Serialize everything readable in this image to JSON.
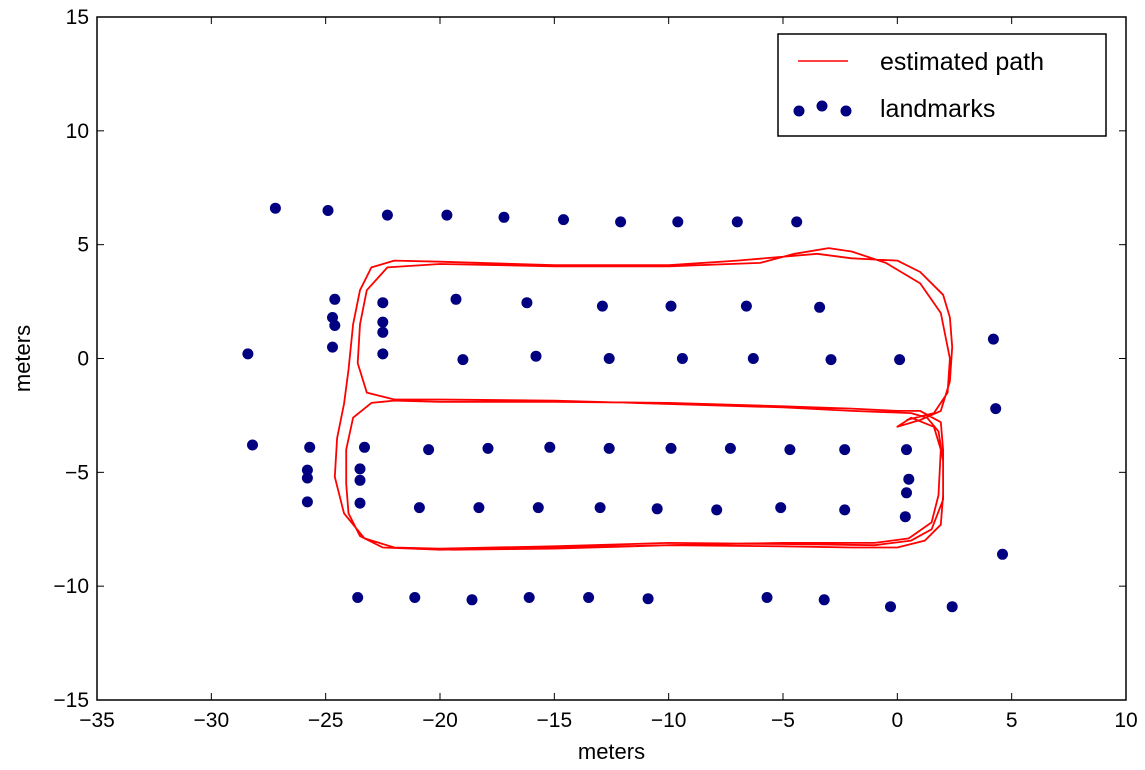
{
  "chart_data": {
    "type": "scatter",
    "xlabel": "meters",
    "ylabel": "meters",
    "xlim": [
      -35,
      10
    ],
    "ylim": [
      -15,
      15
    ],
    "xticks": [
      -35,
      -30,
      -25,
      -20,
      -15,
      -10,
      -5,
      0,
      5,
      10
    ],
    "yticks": [
      -15,
      -10,
      -5,
      0,
      5,
      10,
      15
    ],
    "xtick_labels": [
      "−35",
      "−30",
      "−25",
      "−20",
      "−15",
      "−10",
      "−5",
      "0",
      "5",
      "10"
    ],
    "ytick_labels": [
      "−15",
      "−10",
      "−5",
      "0",
      "5",
      "10",
      "15"
    ],
    "grid": false,
    "legend_position": "top-right",
    "series": [
      {
        "name": "estimated path",
        "type": "line",
        "color": "#ff0000",
        "points": [
          [
            -19.5,
            -8.4
          ],
          [
            -15,
            -8.35
          ],
          [
            -10,
            -8.2
          ],
          [
            -5,
            -8.25
          ],
          [
            -2,
            -8.3
          ],
          [
            0,
            -8.3
          ],
          [
            1.2,
            -8.0
          ],
          [
            1.9,
            -7.3
          ],
          [
            2.0,
            -6.0
          ],
          [
            2.0,
            -4.0
          ],
          [
            1.9,
            -2.8
          ],
          [
            1.0,
            -2.3
          ],
          [
            0,
            -2.3
          ],
          [
            -2,
            -2.2
          ],
          [
            -5,
            -2.1
          ],
          [
            -10,
            -1.95
          ],
          [
            -15,
            -1.9
          ],
          [
            -20,
            -1.9
          ],
          [
            -22,
            -1.85
          ],
          [
            -23,
            -1.95
          ],
          [
            -23.8,
            -2.6
          ],
          [
            -24.1,
            -4.0
          ],
          [
            -24.1,
            -5.5
          ],
          [
            -24.0,
            -6.8
          ],
          [
            -23.5,
            -7.8
          ],
          [
            -22.5,
            -8.3
          ],
          [
            -20,
            -8.4
          ],
          [
            -15,
            -8.3
          ],
          [
            -10,
            -8.2
          ],
          [
            -5,
            -8.1
          ],
          [
            -1,
            -8.1
          ],
          [
            0.5,
            -7.9
          ],
          [
            1.5,
            -7.2
          ],
          [
            1.8,
            -6.0
          ],
          [
            1.9,
            -4.0
          ],
          [
            1.6,
            -3.0
          ],
          [
            0.6,
            -2.6
          ],
          [
            0,
            -3.0
          ],
          [
            1.0,
            -2.7
          ],
          [
            1.9,
            -2.3
          ],
          [
            2.3,
            -1.0
          ],
          [
            2.4,
            0.5
          ],
          [
            2.3,
            1.8
          ],
          [
            2.0,
            2.8
          ],
          [
            1.0,
            3.8
          ],
          [
            0,
            4.3
          ],
          [
            -2.0,
            4.4
          ],
          [
            -3.5,
            4.6
          ],
          [
            -7,
            4.3
          ],
          [
            -10,
            4.1
          ],
          [
            -15,
            4.1
          ],
          [
            -20,
            4.25
          ],
          [
            -22,
            4.3
          ],
          [
            -23.0,
            4.0
          ],
          [
            -23.5,
            3.0
          ],
          [
            -23.8,
            1.5
          ],
          [
            -24.0,
            -0.5
          ],
          [
            -24.2,
            -2.0
          ],
          [
            -24.5,
            -3.5
          ],
          [
            -24.6,
            -5.2
          ],
          [
            -24.2,
            -6.8
          ],
          [
            -23.3,
            -7.9
          ],
          [
            -22,
            -8.3
          ],
          [
            -20,
            -8.35
          ],
          [
            -15,
            -8.25
          ],
          [
            -10,
            -8.1
          ],
          [
            -5,
            -8.15
          ],
          [
            -1.0,
            -8.2
          ],
          [
            0.6,
            -8.0
          ],
          [
            1.5,
            -7.5
          ],
          [
            2.0,
            -6.2
          ],
          [
            2.0,
            -4.5
          ],
          [
            1.8,
            -3.2
          ],
          [
            1.3,
            -2.6
          ],
          [
            0.6,
            -2.4
          ],
          [
            -2,
            -2.3
          ],
          [
            -5,
            -2.15
          ],
          [
            -10,
            -2.0
          ],
          [
            -15,
            -1.85
          ],
          [
            -20,
            -1.8
          ],
          [
            -22,
            -1.8
          ],
          [
            -23.2,
            -1.5
          ],
          [
            -23.6,
            -0.2
          ],
          [
            -23.5,
            1.5
          ],
          [
            -23.2,
            3.0
          ],
          [
            -22.3,
            4.0
          ],
          [
            -20,
            4.15
          ],
          [
            -15,
            4.05
          ],
          [
            -10,
            4.05
          ],
          [
            -6,
            4.2
          ],
          [
            -4.5,
            4.6
          ],
          [
            -3.0,
            4.85
          ],
          [
            -2.0,
            4.7
          ],
          [
            -0.5,
            4.2
          ],
          [
            1.0,
            3.3
          ],
          [
            1.9,
            2.0
          ],
          [
            2.3,
            0.0
          ],
          [
            2.2,
            -1.5
          ],
          [
            1.6,
            -2.4
          ],
          [
            0.4,
            -2.7
          ]
        ]
      },
      {
        "name": "landmarks",
        "type": "scatter",
        "color": "#000080",
        "points": [
          [
            -27.2,
            6.6
          ],
          [
            -24.9,
            6.5
          ],
          [
            -22.3,
            6.3
          ],
          [
            -19.7,
            6.3
          ],
          [
            -17.2,
            6.2
          ],
          [
            -14.6,
            6.1
          ],
          [
            -12.1,
            6.0
          ],
          [
            -9.6,
            6.0
          ],
          [
            -7.0,
            6.0
          ],
          [
            -4.4,
            6.0
          ],
          [
            -24.6,
            2.6
          ],
          [
            -22.5,
            2.45
          ],
          [
            -19.3,
            2.6
          ],
          [
            -16.2,
            2.45
          ],
          [
            -12.9,
            2.3
          ],
          [
            -9.9,
            2.3
          ],
          [
            -6.6,
            2.3
          ],
          [
            -3.4,
            2.25
          ],
          [
            -24.7,
            1.8
          ],
          [
            -24.6,
            1.45
          ],
          [
            -22.5,
            1.6
          ],
          [
            -22.5,
            1.15
          ],
          [
            -28.4,
            0.2
          ],
          [
            -24.7,
            0.5
          ],
          [
            -22.5,
            0.2
          ],
          [
            -19.0,
            -0.05
          ],
          [
            -15.8,
            0.1
          ],
          [
            -12.6,
            0.0
          ],
          [
            -9.4,
            0.0
          ],
          [
            -6.3,
            0.0
          ],
          [
            -2.9,
            -0.05
          ],
          [
            0.1,
            -0.05
          ],
          [
            4.2,
            0.85
          ],
          [
            4.3,
            -2.2
          ],
          [
            -28.2,
            -3.8
          ],
          [
            -25.7,
            -3.9
          ],
          [
            -23.3,
            -3.9
          ],
          [
            -20.5,
            -4.0
          ],
          [
            -17.9,
            -3.95
          ],
          [
            -15.2,
            -3.9
          ],
          [
            -12.6,
            -3.95
          ],
          [
            -9.9,
            -3.95
          ],
          [
            -7.3,
            -3.95
          ],
          [
            -4.7,
            -4.0
          ],
          [
            -2.3,
            -4.0
          ],
          [
            0.4,
            -4.0
          ],
          [
            -25.8,
            -4.9
          ],
          [
            -25.8,
            -5.25
          ],
          [
            -23.5,
            -4.85
          ],
          [
            -23.5,
            -5.35
          ],
          [
            0.5,
            -5.3
          ],
          [
            0.4,
            -5.9
          ],
          [
            -25.8,
            -6.3
          ],
          [
            -23.5,
            -6.35
          ],
          [
            -20.9,
            -6.55
          ],
          [
            -18.3,
            -6.55
          ],
          [
            -15.7,
            -6.55
          ],
          [
            -13.0,
            -6.55
          ],
          [
            -10.5,
            -6.6
          ],
          [
            -7.9,
            -6.65
          ],
          [
            -5.1,
            -6.55
          ],
          [
            -2.3,
            -6.65
          ],
          [
            0.35,
            -6.95
          ],
          [
            4.6,
            -8.6
          ],
          [
            -23.6,
            -10.5
          ],
          [
            -21.1,
            -10.5
          ],
          [
            -18.6,
            -10.6
          ],
          [
            -16.1,
            -10.5
          ],
          [
            -13.5,
            -10.5
          ],
          [
            -10.9,
            -10.55
          ],
          [
            -5.7,
            -10.5
          ],
          [
            -3.2,
            -10.6
          ],
          [
            -0.3,
            -10.9
          ],
          [
            2.4,
            -10.9
          ]
        ]
      }
    ]
  }
}
